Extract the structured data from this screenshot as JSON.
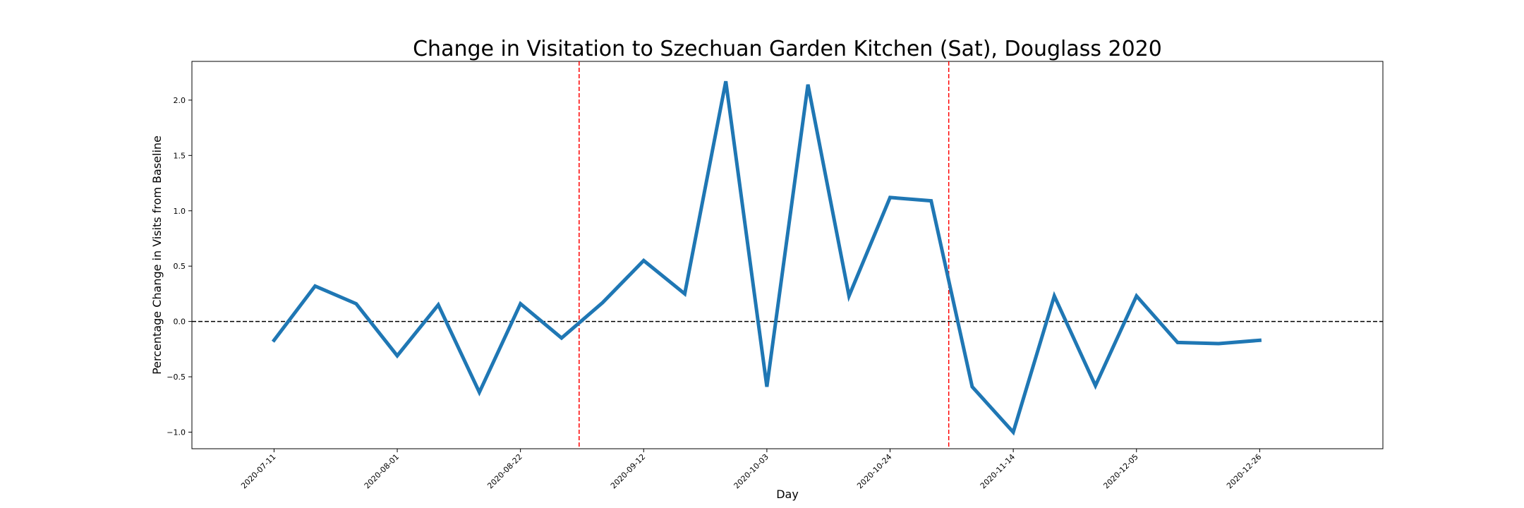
{
  "chart_data": {
    "type": "line",
    "title": "Change in Visitation to Szechuan Garden Kitchen (Sat), Douglass 2020",
    "xlabel": "Day",
    "ylabel": "Percentage Change in Visits from Baseline",
    "ylim": [
      -1.15,
      2.35
    ],
    "yticks": [
      -1.0,
      -0.5,
      0.0,
      0.5,
      1.0,
      1.5,
      2.0
    ],
    "ytick_labels": [
      "−1.0",
      "−0.5",
      "0.0",
      "0.5",
      "1.0",
      "1.5",
      "2.0"
    ],
    "xlim": [
      "2020-06-27",
      "2021-01-16"
    ],
    "xticks": [
      "2020-07-11",
      "2020-08-01",
      "2020-08-22",
      "2020-09-12",
      "2020-10-03",
      "2020-10-24",
      "2020-11-14",
      "2020-12-05",
      "2020-12-26"
    ],
    "grid": false,
    "series": [
      {
        "color": "#1f77b4",
        "points": [
          {
            "x": "2020-07-11",
            "y": -0.17
          },
          {
            "x": "2020-07-18",
            "y": 0.32
          },
          {
            "x": "2020-07-25",
            "y": 0.16
          },
          {
            "x": "2020-08-01",
            "y": -0.31
          },
          {
            "x": "2020-08-08",
            "y": 0.15
          },
          {
            "x": "2020-08-15",
            "y": -0.64
          },
          {
            "x": "2020-08-22",
            "y": 0.16
          },
          {
            "x": "2020-08-29",
            "y": -0.15
          },
          {
            "x": "2020-09-05",
            "y": 0.17
          },
          {
            "x": "2020-09-12",
            "y": 0.55
          },
          {
            "x": "2020-09-19",
            "y": 0.25
          },
          {
            "x": "2020-09-26",
            "y": 2.17
          },
          {
            "x": "2020-10-03",
            "y": -0.59
          },
          {
            "x": "2020-10-10",
            "y": 2.14
          },
          {
            "x": "2020-10-17",
            "y": 0.23
          },
          {
            "x": "2020-10-24",
            "y": 1.12
          },
          {
            "x": "2020-10-31",
            "y": 1.09
          },
          {
            "x": "2020-11-07",
            "y": -0.59
          },
          {
            "x": "2020-11-14",
            "y": -1.0
          },
          {
            "x": "2020-11-21",
            "y": 0.23
          },
          {
            "x": "2020-11-28",
            "y": -0.58
          },
          {
            "x": "2020-12-05",
            "y": 0.23
          },
          {
            "x": "2020-12-12",
            "y": -0.19
          },
          {
            "x": "2020-12-19",
            "y": -0.2
          },
          {
            "x": "2020-12-26",
            "y": -0.17
          }
        ]
      }
    ],
    "reference_lines": {
      "horizontal": {
        "y": 0.0,
        "color": "#000000",
        "style": "dashed"
      },
      "vertical": [
        {
          "x": "2020-09-01",
          "color": "#ff0000",
          "style": "dashed"
        },
        {
          "x": "2020-11-03",
          "color": "#ff0000",
          "style": "dashed"
        }
      ]
    }
  }
}
